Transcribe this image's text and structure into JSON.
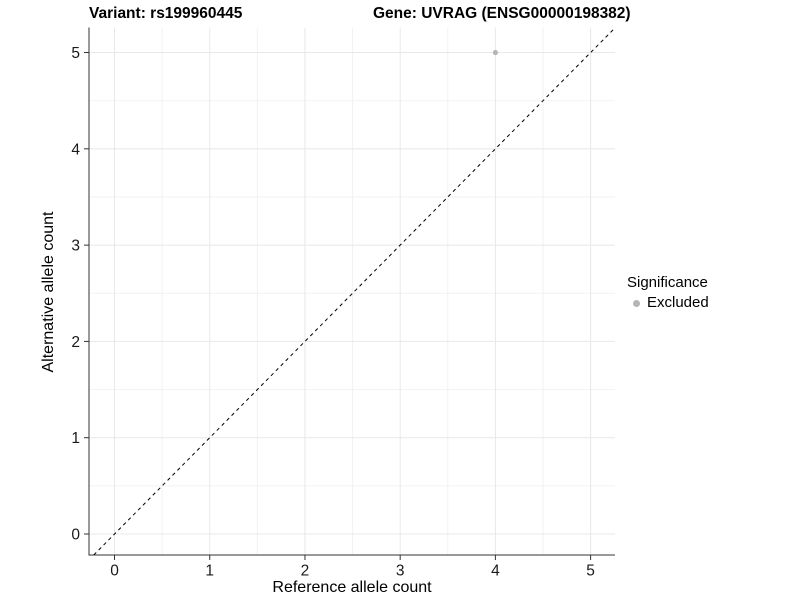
{
  "header": {
    "variant_title": "Variant: rs199960445",
    "gene_title": "Gene: UVRAG (ENSG00000198382)"
  },
  "legend": {
    "title": "Significance",
    "items": [
      {
        "label": "Excluded",
        "color": "#b5b5b5"
      }
    ]
  },
  "chart_data": {
    "type": "scatter",
    "title": "Variant: rs199960445 — Gene: UVRAG (ENSG00000198382)",
    "xlabel": "Reference allele count",
    "ylabel": "Alternative allele count",
    "xlim": [
      -0.268,
      5.256
    ],
    "ylim": [
      -0.218,
      5.26
    ],
    "x_ticks": [
      0,
      1,
      2,
      3,
      4,
      5
    ],
    "y_ticks": [
      0,
      1,
      2,
      3,
      4,
      5
    ],
    "x_minor_ticks": [
      0.5,
      1.5,
      2.5,
      3.5,
      4.5
    ],
    "y_minor_ticks": [
      0.5,
      1.5,
      2.5,
      3.5,
      4.5
    ],
    "grid": "major+minor",
    "legend_position": "right",
    "series": [
      {
        "name": "Excluded",
        "color": "#b5b5b5",
        "points": [
          {
            "x": 4,
            "y": 5
          }
        ]
      }
    ],
    "reference_line": {
      "type": "abline",
      "slope": 1,
      "intercept": 0,
      "style": "dashed",
      "color": "#000000"
    },
    "colors": {
      "background": "#ffffff",
      "grid_major": "#e8e8e8",
      "grid_minor": "#f2f2f2",
      "axis_line": "#333333",
      "tick_mark": "#333333",
      "tick_label": "#1a1a1a"
    }
  }
}
